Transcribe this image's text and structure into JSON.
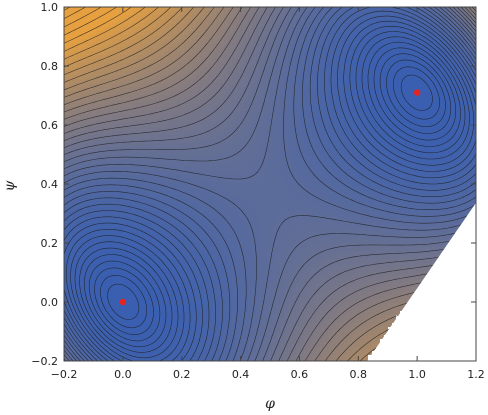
{
  "chart_data": {
    "type": "contour",
    "xlabel": "φ",
    "ylabel": "ψ",
    "xlim": [
      -0.2,
      1.2
    ],
    "ylim": [
      -0.2,
      1.0
    ],
    "xticks": [
      -0.2,
      0.0,
      0.2,
      0.4,
      0.6,
      0.8,
      1.0,
      1.2
    ],
    "yticks": [
      -0.2,
      0.0,
      0.2,
      0.4,
      0.6,
      0.8,
      1.0
    ],
    "xtick_labels": [
      "−0.2",
      "0.0",
      "0.2",
      "0.4",
      "0.6",
      "0.8",
      "1.0",
      "1.2"
    ],
    "ytick_labels": [
      "−0.2",
      "0.0",
      "0.2",
      "0.4",
      "0.6",
      "0.8",
      "1.0"
    ],
    "minima": [
      {
        "x": 0.0,
        "y": 0.0
      },
      {
        "x": 1.0,
        "y": 0.71
      }
    ],
    "colors": {
      "low": "#3a5fb0",
      "mid": "#4a6fb8",
      "high": "#e6a040",
      "contour_line": "#1a1a1a",
      "marker": "#e8231e",
      "undefined_region": "#ffffff"
    },
    "grid": false,
    "legend": "none"
  }
}
